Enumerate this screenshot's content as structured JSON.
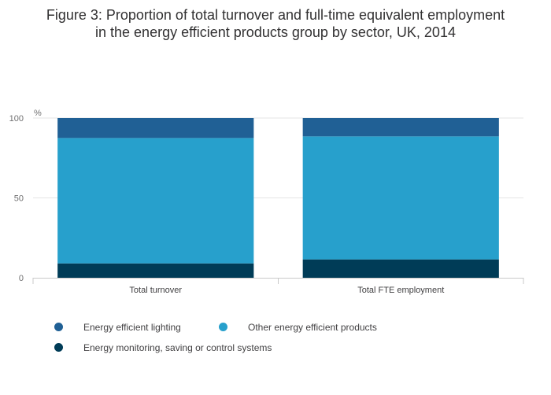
{
  "title_lines": [
    "Figure 3: Proportion of total turnover and full-time equivalent employment",
    "in the energy efficient products group by sector, UK, 2014"
  ],
  "chart_data": {
    "type": "bar",
    "stacked": true,
    "categories": [
      "Total turnover",
      "Total FTE employment"
    ],
    "series": [
      {
        "name": "Energy monitoring, saving or control systems",
        "values": [
          9,
          11.5
        ],
        "color": "#003c57"
      },
      {
        "name": "Other energy efficient products",
        "values": [
          78.5,
          77
        ],
        "color": "#27a0cc"
      },
      {
        "name": "Energy efficient lighting",
        "values": [
          12.5,
          11.5
        ],
        "color": "#206095"
      }
    ],
    "ylabel": "%",
    "ylim": [
      0,
      100
    ],
    "yticks": [
      0,
      50,
      100
    ],
    "grid": true,
    "legend_position": "bottom"
  },
  "legend": [
    {
      "label": "Energy efficient lighting",
      "color": "#206095"
    },
    {
      "label": "Other energy efficient products",
      "color": "#27a0cc"
    },
    {
      "label": "Energy monitoring, saving or control systems",
      "color": "#003c57"
    }
  ]
}
